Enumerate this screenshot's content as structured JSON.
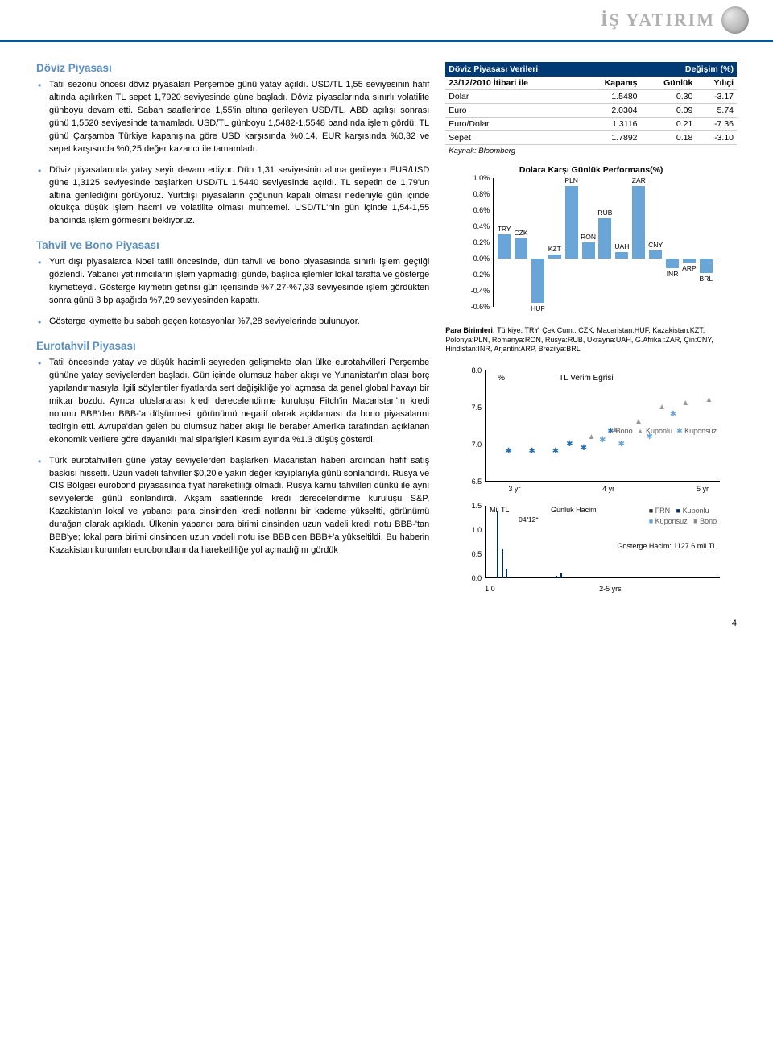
{
  "logo_text": "İŞ YATIRIM",
  "page_number": "4",
  "sections": {
    "fx_title": "Döviz Piyasası",
    "bond_title": "Tahvil ve Bono Piyasası",
    "eurobond_title": "Eurotahvil Piyasası"
  },
  "fx_bullets": [
    "Tatil sezonu öncesi döviz piyasaları Perşembe günü yatay açıldı. USD/TL 1,55 seviyesinin hafif altında açılırken TL sepet 1,7920 seviyesinde güne başladı. Döviz piyasalarında sınırlı volatilite günboyu devam etti. Sabah saatlerinde 1,55'in altına gerileyen USD/TL, ABD açılışı sonrası günü 1,5520 seviyesinde tamamladı. USD/TL günboyu 1,5482-1,5548 bandında işlem gördü. TL günü Çarşamba Türkiye kapanışına göre USD karşısında %0,14, EUR karşısında %0,32 ve sepet karşısında %0,25 değer kazancı ile tamamladı.",
    "Döviz piyasalarında yatay seyir devam ediyor. Dün 1,31 seviyesinin altına gerileyen EUR/USD güne 1,3125 seviyesinde başlarken USD/TL 1,5440 seviyesinde açıldı. TL sepetin de 1,79'un altına gerilediğini görüyoruz. Yurtdışı piyasaların çoğunun kapalı olması nedeniyle gün içinde oldukça düşük işlem hacmi ve volatilite olması muhtemel. USD/TL'nin gün içinde 1,54-1,55 bandında işlem görmesini bekliyoruz."
  ],
  "bond_bullets": [
    "Yurt dışı piyasalarda Noel tatili öncesinde, dün tahvil ve bono piyasasında sınırlı işlem geçtiği gözlendi. Yabancı yatırımcıların işlem yapmadığı günde, başlıca işlemler lokal tarafta ve gösterge kıymetteydi. Gösterge kıymetin getirisi gün içerisinde %7,27-%7,33 seviyesinde işlem gördükten sonra günü 3 bp aşağıda %7,29 seviyesinden kapattı.",
    "Gösterge kıymette bu sabah geçen kotasyonlar %7,28 seviyelerinde bulunuyor."
  ],
  "eurobond_bullets": [
    "Tatil öncesinde yatay ve düşük hacimli seyreden gelişmekte olan ülke eurotahvilleri Perşembe gününe yatay seviyelerden başladı. Gün içinde olumsuz haber akışı ve Yunanistan'ın olası borç yapılandırmasıyla ilgili söylentiler fiyatlarda sert değişikliğe yol açmasa da genel global havayı bir miktar bozdu. Ayrıca uluslararası kredi derecelendirme kuruluşu Fitch'in Macaristan'ın kredi notunu BBB'den BBB-'a düşürmesi, görünümü negatif olarak açıklaması da bono piyasalarını tedirgin etti. Avrupa'dan gelen bu olumsuz haber akışı ile beraber Amerika tarafından açıklanan ekonomik verilere göre dayanıklı mal siparişleri Kasım ayında %1.3 düşüş gösterdi.",
    "Türk eurotahvilleri güne yatay seviyelerden başlarken Macaristan haberi ardından hafif satış baskısı hissetti. Uzun vadeli tahviller $0,20'e yakın değer kayıplarıyla günü sonlandırdı. Rusya ve CIS Bölgesi eurobond piyasasında fiyat hareketliliği olmadı. Rusya kamu tahvilleri dünkü ile aynı seviyelerde günü sonlandırdı. Akşam saatlerinde kredi derecelendirme kuruluşu S&P, Kazakistan'ın lokal ve yabancı para cinsinden kredi notlarını bir kademe yükseltti, görünümü durağan olarak açıkladı. Ülkenin yabancı para birimi cinsinden uzun vadeli kredi notu BBB-'tan BBB'ye; lokal para birimi cinsinden uzun vadeli notu ise BBB'den BBB+'a yükseltildi. Bu haberin Kazakistan kurumları eurobondlarında hareketliliğe yol açmadığını gördük"
  ],
  "fx_table": {
    "header_left": "Döviz Piyasası Verileri",
    "header_right": "Değişim (%)",
    "subheader": "23/12/2010 İtibari ile",
    "cols": [
      "Kapanış",
      "Günlük",
      "Yılıçi"
    ],
    "rows": [
      {
        "label": "Dolar",
        "close": "1.5480",
        "daily": "0.30",
        "ytd": "-3.17"
      },
      {
        "label": "Euro",
        "close": "2.0304",
        "daily": "0.09",
        "ytd": "5.74"
      },
      {
        "label": "Euro/Dolar",
        "close": "1.3116",
        "daily": "0.21",
        "ytd": "-7.36"
      },
      {
        "label": "Sepet",
        "close": "1.7892",
        "daily": "0.18",
        "ytd": "-3.10"
      }
    ],
    "source": "Kaynak: Bloomberg"
  },
  "bar_chart": {
    "title": "Dolara Karşı Günlük Performans(%)",
    "ymin": -0.6,
    "ymax": 1.0,
    "ystep": 0.2,
    "bar_color": "#6aa5d8",
    "series": [
      {
        "label": "TRY",
        "value": 0.3
      },
      {
        "label": "CZK",
        "value": 0.25
      },
      {
        "label": "HUF",
        "value": -0.55
      },
      {
        "label": "KZT",
        "value": 0.05
      },
      {
        "label": "PLN",
        "value": 0.9
      },
      {
        "label": "RON",
        "value": 0.2
      },
      {
        "label": "RUB",
        "value": 0.5
      },
      {
        "label": "UAH",
        "value": 0.08
      },
      {
        "label": "ZAR",
        "value": 0.9
      },
      {
        "label": "CNY",
        "value": 0.1
      },
      {
        "label": "INR",
        "value": -0.12
      },
      {
        "label": "ARP",
        "value": -0.05
      },
      {
        "label": "BRL",
        "value": -0.18
      }
    ]
  },
  "para_note": {
    "label": "Para Birimleri:",
    "text": "Türkiye: TRY, Çek Cum.: CZK, Macaristan:HUF, Kazakistan:KZT, Polonya:PLN, Romanya:RON, Rusya:RUB, Ukrayna:UAH, G.Afrika :ZAR, Çin:CNY, Hindistan:INR, Arjantin:ARP, Brezilya:BRL"
  },
  "yield_chart": {
    "pct": "%",
    "title": "TL Verim Egrisi",
    "ymin": 6.5,
    "ymax": 8.0,
    "ystep": 0.5,
    "xlabels": [
      "3 yr",
      "4 yr",
      "5 yr"
    ],
    "legend": [
      "Bono",
      "Kuponlu",
      "Kuponsuz"
    ],
    "points_bono": [
      {
        "x": 0.1,
        "y": 6.9
      },
      {
        "x": 0.2,
        "y": 6.9
      },
      {
        "x": 0.3,
        "y": 6.9
      },
      {
        "x": 0.36,
        "y": 7.0
      },
      {
        "x": 0.42,
        "y": 6.95
      }
    ],
    "points_kuponlu": [
      {
        "x": 0.45,
        "y": 7.1
      },
      {
        "x": 0.55,
        "y": 7.2
      },
      {
        "x": 0.65,
        "y": 7.3
      },
      {
        "x": 0.75,
        "y": 7.5
      },
      {
        "x": 0.85,
        "y": 7.55
      },
      {
        "x": 0.95,
        "y": 7.6
      }
    ],
    "points_kuponsuz": [
      {
        "x": 0.5,
        "y": 7.05
      },
      {
        "x": 0.58,
        "y": 7.0
      },
      {
        "x": 0.7,
        "y": 7.1
      },
      {
        "x": 0.8,
        "y": 7.4
      }
    ]
  },
  "vol_chart": {
    "ylabel": "Mil TL",
    "title": "Gunluk Hacim",
    "date": "04/12*",
    "ymin": 0.0,
    "ymax": 1.5,
    "ystep": 0.5,
    "legend": [
      "FRN",
      "Kuponlu",
      "Kuponsuz",
      "Bono"
    ],
    "note": "Gosterge Hacim: 1127.6 mil TL",
    "xaxis_left": "1 0",
    "xaxis_right": "2-5 yrs",
    "bars": [
      {
        "x": 0.05,
        "h": 1.4
      },
      {
        "x": 0.07,
        "h": 0.6
      },
      {
        "x": 0.09,
        "h": 0.2
      },
      {
        "x": 0.3,
        "h": 0.05
      },
      {
        "x": 0.32,
        "h": 0.1
      }
    ]
  }
}
